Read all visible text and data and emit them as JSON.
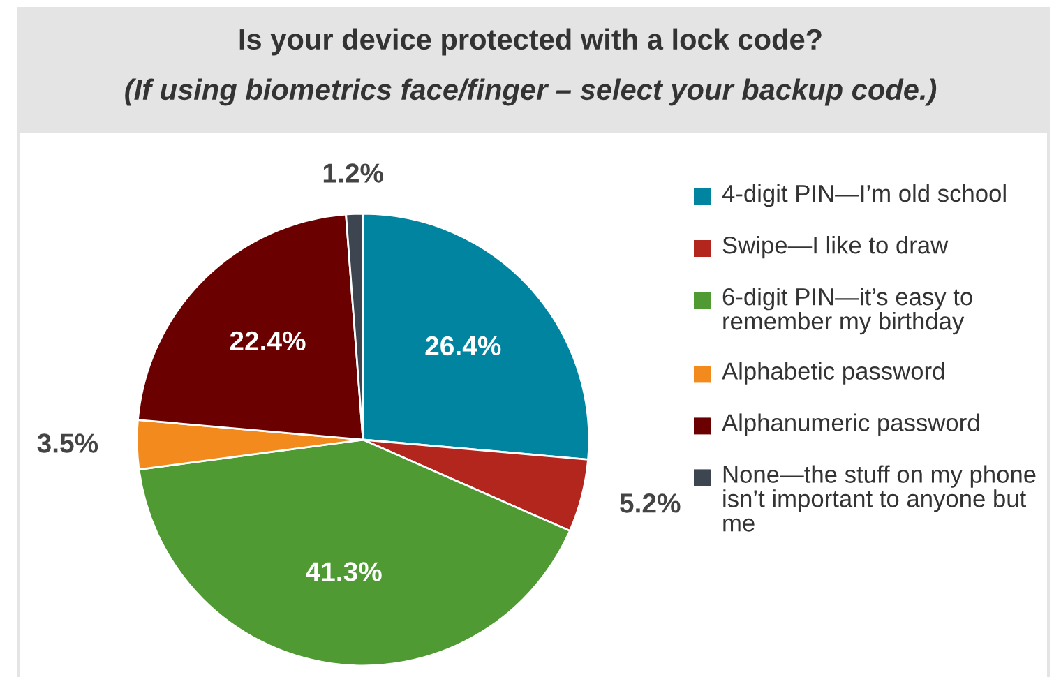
{
  "chart_data": {
    "type": "pie",
    "title": "Is your device protected with a lock code?",
    "subtitle": "(If using biometrics face/finger – select your backup code.)",
    "categories": [
      "4-digit PIN—I’m old school",
      "Swipe—I like to draw",
      "6-digit PIN—it’s easy to remember my birthday",
      "Alphabetic password",
      "Alphanumeric password",
      "None—the stuff on my phone isn’t important to anyone but me"
    ],
    "values": [
      26.4,
      5.2,
      41.3,
      3.5,
      22.4,
      1.2
    ],
    "value_labels": [
      "26.4%",
      "5.2%",
      "41.3%",
      "3.5%",
      "22.4%",
      "1.2%"
    ],
    "colors": [
      "#00849f",
      "#b3261e",
      "#4f9a32",
      "#f28a1e",
      "#6b0000",
      "#3d4650"
    ],
    "legend": "right"
  }
}
